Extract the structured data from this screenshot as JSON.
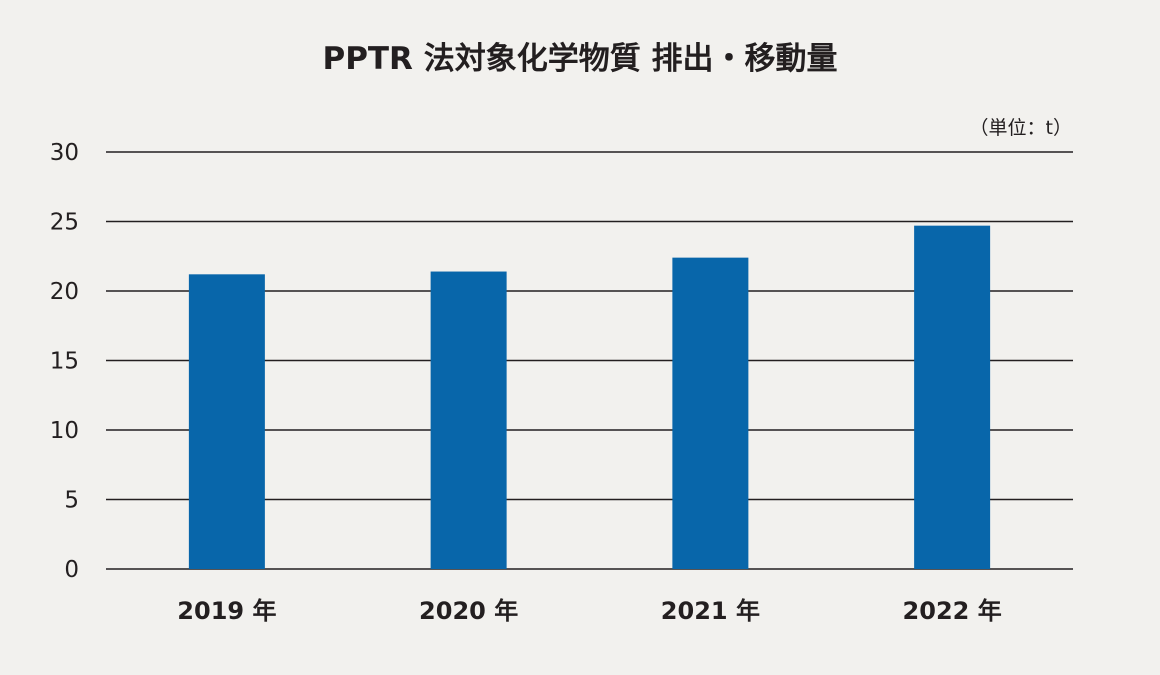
{
  "chart_data": {
    "type": "bar",
    "title": "PPTR 法対象化学物質 排出・移動量",
    "unit_label": "（単位：t）",
    "categories": [
      "2019 年",
      "2020 年",
      "2021 年",
      "2022 年"
    ],
    "values": [
      21.2,
      21.4,
      22.4,
      24.7
    ],
    "ylim": [
      0,
      30
    ],
    "y_ticks": [
      0,
      5,
      10,
      15,
      20,
      25,
      30
    ],
    "grid": true,
    "legend": "none",
    "colors": {
      "bar": "#0866aa",
      "background": "#f2f1ee",
      "text": "#231f20",
      "grid": "#231f20"
    }
  }
}
